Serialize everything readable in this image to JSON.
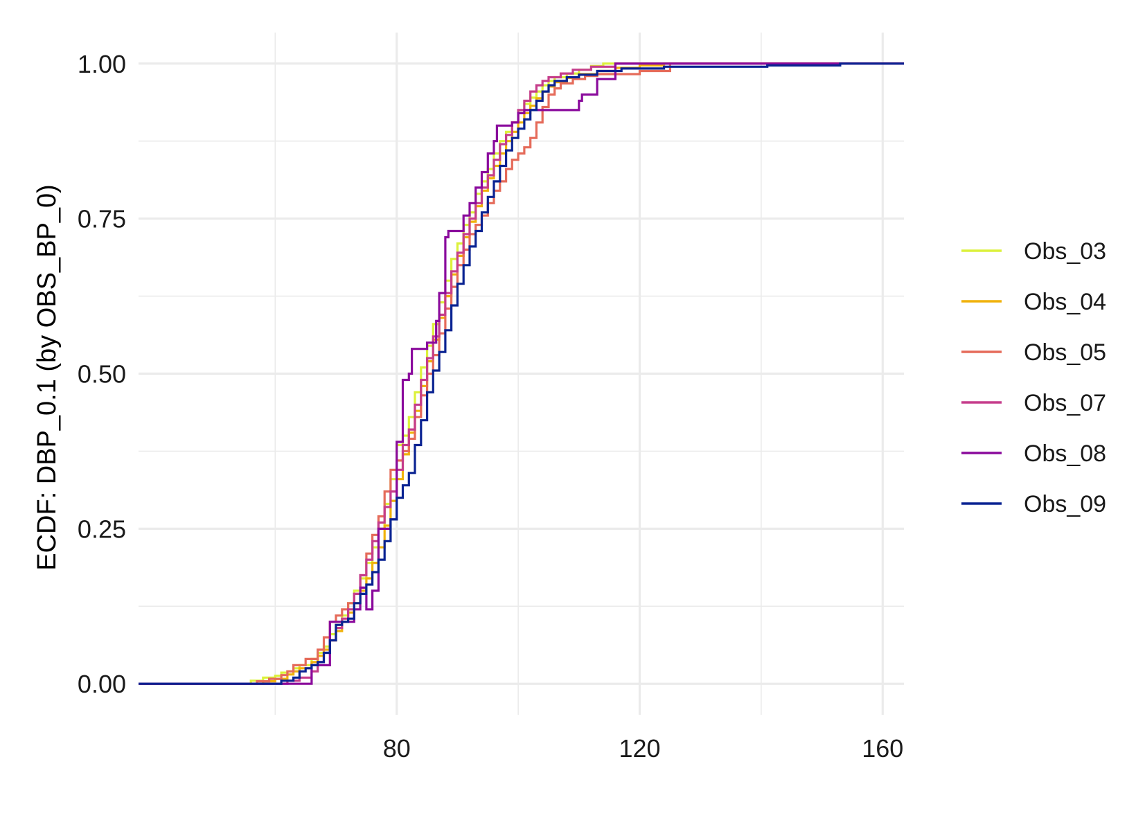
{
  "chart_data": {
    "type": "line",
    "step": true,
    "title": "",
    "xlabel": "",
    "ylabel": "ECDF: DBP_0.1 (by OBS_BP_0)",
    "xlim": [
      37.5,
      163.5
    ],
    "ylim": [
      -0.05,
      1.05
    ],
    "x_ticks": [
      80,
      120,
      160
    ],
    "x_tick_labels": [
      "80",
      "120",
      "160"
    ],
    "x_minor_ticks": [
      60,
      100,
      140
    ],
    "y_ticks": [
      0,
      0.25,
      0.5,
      0.75,
      1
    ],
    "y_tick_labels": [
      "0.00",
      "0.25",
      "0.50",
      "0.75",
      "1.00"
    ],
    "y_minor_ticks": [
      0.125,
      0.375,
      0.625,
      0.875
    ],
    "grid": true,
    "legend_position": "right",
    "series": [
      {
        "name": "Obs_03",
        "color": "#dcf13b",
        "points": [
          [
            37.5,
            0
          ],
          [
            52,
            0
          ],
          [
            56,
            0.005
          ],
          [
            58,
            0.01
          ],
          [
            60,
            0.013
          ],
          [
            61,
            0.018
          ],
          [
            62,
            0.02
          ],
          [
            63,
            0.025
          ],
          [
            64,
            0.03
          ],
          [
            66,
            0.04
          ],
          [
            67,
            0.05
          ],
          [
            68,
            0.06
          ],
          [
            69,
            0.08
          ],
          [
            70,
            0.095
          ],
          [
            71,
            0.11
          ],
          [
            72,
            0.13
          ],
          [
            73,
            0.15
          ],
          [
            74,
            0.17
          ],
          [
            75,
            0.195
          ],
          [
            76,
            0.22
          ],
          [
            77,
            0.25
          ],
          [
            78,
            0.29
          ],
          [
            79,
            0.33
          ],
          [
            80,
            0.385
          ],
          [
            81,
            0.4
          ],
          [
            82,
            0.43
          ],
          [
            83,
            0.47
          ],
          [
            84,
            0.51
          ],
          [
            85,
            0.545
          ],
          [
            86,
            0.58
          ],
          [
            87,
            0.615
          ],
          [
            88,
            0.65
          ],
          [
            89,
            0.685
          ],
          [
            90,
            0.71
          ],
          [
            91,
            0.74
          ],
          [
            92,
            0.76
          ],
          [
            93,
            0.79
          ],
          [
            94,
            0.81
          ],
          [
            95,
            0.83
          ],
          [
            96,
            0.855
          ],
          [
            97,
            0.875
          ],
          [
            98,
            0.89
          ],
          [
            99,
            0.905
          ],
          [
            100,
            0.92
          ],
          [
            101,
            0.935
          ],
          [
            102,
            0.945
          ],
          [
            103,
            0.955
          ],
          [
            104,
            0.965
          ],
          [
            105,
            0.972
          ],
          [
            106,
            0.978
          ],
          [
            108,
            0.984
          ],
          [
            110,
            0.99
          ],
          [
            112,
            0.996
          ],
          [
            114,
            1
          ],
          [
            163.5,
            1
          ]
        ]
      },
      {
        "name": "Obs_04",
        "color": "#f0b20c",
        "points": [
          [
            37.5,
            0
          ],
          [
            56,
            0
          ],
          [
            58,
            0.004
          ],
          [
            60,
            0.008
          ],
          [
            62,
            0.015
          ],
          [
            63,
            0.02
          ],
          [
            64,
            0.025
          ],
          [
            66,
            0.035
          ],
          [
            67,
            0.045
          ],
          [
            68,
            0.055
          ],
          [
            69,
            0.07
          ],
          [
            70,
            0.085
          ],
          [
            71,
            0.1
          ],
          [
            72,
            0.115
          ],
          [
            73,
            0.13
          ],
          [
            74,
            0.15
          ],
          [
            75,
            0.17
          ],
          [
            76,
            0.195
          ],
          [
            77,
            0.22
          ],
          [
            78,
            0.255
          ],
          [
            79,
            0.295
          ],
          [
            80,
            0.33
          ],
          [
            81,
            0.37
          ],
          [
            82,
            0.405
          ],
          [
            83,
            0.44
          ],
          [
            84,
            0.48
          ],
          [
            85,
            0.52
          ],
          [
            86,
            0.555
          ],
          [
            87,
            0.59
          ],
          [
            88,
            0.625
          ],
          [
            89,
            0.66
          ],
          [
            90,
            0.69
          ],
          [
            91,
            0.72
          ],
          [
            92,
            0.745
          ],
          [
            93,
            0.77
          ],
          [
            94,
            0.795
          ],
          [
            95,
            0.815
          ],
          [
            96,
            0.835
          ],
          [
            97,
            0.855
          ],
          [
            98,
            0.875
          ],
          [
            99,
            0.89
          ],
          [
            100,
            0.905
          ],
          [
            101,
            0.92
          ],
          [
            102,
            0.932
          ],
          [
            103,
            0.944
          ],
          [
            104,
            0.955
          ],
          [
            105,
            0.963
          ],
          [
            106,
            0.97
          ],
          [
            108,
            0.977
          ],
          [
            110,
            0.983
          ],
          [
            113,
            0.988
          ],
          [
            116,
            0.993
          ],
          [
            120,
            0.997
          ],
          [
            124,
            1
          ],
          [
            163.5,
            1
          ]
        ]
      },
      {
        "name": "Obs_05",
        "color": "#e56b5a",
        "points": [
          [
            37.5,
            0
          ],
          [
            55,
            0
          ],
          [
            57,
            0.004
          ],
          [
            59,
            0.008
          ],
          [
            61,
            0.014
          ],
          [
            62,
            0.02
          ],
          [
            63,
            0.03
          ],
          [
            65,
            0.04
          ],
          [
            67,
            0.055
          ],
          [
            68,
            0.075
          ],
          [
            69,
            0.1
          ],
          [
            70,
            0.11
          ],
          [
            71,
            0.12
          ],
          [
            72,
            0.13
          ],
          [
            73,
            0.145
          ],
          [
            74,
            0.175
          ],
          [
            75,
            0.21
          ],
          [
            76,
            0.24
          ],
          [
            77,
            0.27
          ],
          [
            78,
            0.31
          ],
          [
            79,
            0.345
          ],
          [
            80,
            0.36
          ],
          [
            81,
            0.375
          ],
          [
            82,
            0.395
          ],
          [
            83,
            0.43
          ],
          [
            84,
            0.465
          ],
          [
            85,
            0.5
          ],
          [
            86,
            0.53
          ],
          [
            87,
            0.565
          ],
          [
            88,
            0.605
          ],
          [
            89,
            0.64
          ],
          [
            90,
            0.675
          ],
          [
            91,
            0.7
          ],
          [
            92,
            0.725
          ],
          [
            93,
            0.74
          ],
          [
            94,
            0.755
          ],
          [
            95,
            0.775
          ],
          [
            96,
            0.795
          ],
          [
            97,
            0.81
          ],
          [
            98,
            0.83
          ],
          [
            99,
            0.845
          ],
          [
            100,
            0.855
          ],
          [
            101,
            0.865
          ],
          [
            102,
            0.88
          ],
          [
            103,
            0.905
          ],
          [
            104,
            0.93
          ],
          [
            105,
            0.95
          ],
          [
            106,
            0.96
          ],
          [
            107,
            0.968
          ],
          [
            109,
            0.975
          ],
          [
            111,
            0.98
          ],
          [
            113,
            0.983
          ],
          [
            120,
            0.988
          ],
          [
            125,
            1
          ],
          [
            163.5,
            1
          ]
        ]
      },
      {
        "name": "Obs_07",
        "color": "#c53d8b",
        "points": [
          [
            37.5,
            0
          ],
          [
            60,
            0
          ],
          [
            62,
            0.005
          ],
          [
            64,
            0.01
          ],
          [
            66,
            0.02
          ],
          [
            67,
            0.035
          ],
          [
            68,
            0.05
          ],
          [
            69,
            0.07
          ],
          [
            70,
            0.09
          ],
          [
            71,
            0.105
          ],
          [
            72,
            0.12
          ],
          [
            73,
            0.145
          ],
          [
            74,
            0.175
          ],
          [
            75,
            0.2
          ],
          [
            76,
            0.23
          ],
          [
            77,
            0.26
          ],
          [
            78,
            0.285
          ],
          [
            79,
            0.31
          ],
          [
            80,
            0.345
          ],
          [
            81,
            0.385
          ],
          [
            82,
            0.41
          ],
          [
            83,
            0.45
          ],
          [
            84,
            0.49
          ],
          [
            85,
            0.525
          ],
          [
            86,
            0.56
          ],
          [
            87,
            0.595
          ],
          [
            88,
            0.63
          ],
          [
            89,
            0.665
          ],
          [
            90,
            0.695
          ],
          [
            91,
            0.725
          ],
          [
            92,
            0.75
          ],
          [
            93,
            0.775
          ],
          [
            94,
            0.8
          ],
          [
            95,
            0.82
          ],
          [
            96,
            0.845
          ],
          [
            97,
            0.87
          ],
          [
            98,
            0.885
          ],
          [
            99,
            0.905
          ],
          [
            100,
            0.925
          ],
          [
            101,
            0.94
          ],
          [
            102,
            0.955
          ],
          [
            103,
            0.965
          ],
          [
            104,
            0.972
          ],
          [
            105,
            0.978
          ],
          [
            107,
            0.984
          ],
          [
            109,
            0.99
          ],
          [
            112,
            0.995
          ],
          [
            116,
            1
          ],
          [
            163.5,
            1
          ]
        ]
      },
      {
        "name": "Obs_08",
        "color": "#8a0a9c",
        "points": [
          [
            37.5,
            0
          ],
          [
            65,
            0
          ],
          [
            66,
            0.03
          ],
          [
            69,
            0.1
          ],
          [
            72,
            0.1
          ],
          [
            73,
            0.12
          ],
          [
            74,
            0.155
          ],
          [
            75,
            0.12
          ],
          [
            76,
            0.15
          ],
          [
            77,
            0.25
          ],
          [
            78,
            0.25
          ],
          [
            79,
            0.265
          ],
          [
            80,
            0.39
          ],
          [
            81,
            0.49
          ],
          [
            82,
            0.5
          ],
          [
            82.5,
            0.54
          ],
          [
            84,
            0.54
          ],
          [
            85,
            0.55
          ],
          [
            86,
            0.55
          ],
          [
            86.5,
            0.585
          ],
          [
            87,
            0.63
          ],
          [
            88,
            0.72
          ],
          [
            88.5,
            0.73
          ],
          [
            90,
            0.73
          ],
          [
            91,
            0.755
          ],
          [
            92,
            0.775
          ],
          [
            93,
            0.8
          ],
          [
            94,
            0.825
          ],
          [
            95,
            0.855
          ],
          [
            96,
            0.875
          ],
          [
            96.5,
            0.9
          ],
          [
            98,
            0.9
          ],
          [
            99,
            0.905
          ],
          [
            100,
            0.92
          ],
          [
            101,
            0.925
          ],
          [
            102,
            0.925
          ],
          [
            104,
            0.925
          ],
          [
            106,
            0.925
          ],
          [
            106,
            0.925
          ],
          [
            110,
            0.94
          ],
          [
            110.5,
            0.95
          ],
          [
            113,
            0.975
          ],
          [
            116,
            1
          ],
          [
            163.5,
            1
          ]
        ]
      },
      {
        "name": "Obs_09",
        "color": "#0a2392",
        "points": [
          [
            37.5,
            0
          ],
          [
            57,
            0
          ],
          [
            61,
            0.005
          ],
          [
            63,
            0.01
          ],
          [
            64,
            0.02
          ],
          [
            65,
            0.025
          ],
          [
            66,
            0.03
          ],
          [
            67,
            0.035
          ],
          [
            68,
            0.05
          ],
          [
            69,
            0.07
          ],
          [
            70,
            0.095
          ],
          [
            71,
            0.1
          ],
          [
            72,
            0.105
          ],
          [
            73,
            0.13
          ],
          [
            74,
            0.145
          ],
          [
            75,
            0.16
          ],
          [
            76,
            0.18
          ],
          [
            77,
            0.2
          ],
          [
            78,
            0.23
          ],
          [
            79,
            0.265
          ],
          [
            80,
            0.3
          ],
          [
            81,
            0.32
          ],
          [
            82,
            0.34
          ],
          [
            83,
            0.385
          ],
          [
            84,
            0.425
          ],
          [
            85,
            0.47
          ],
          [
            86,
            0.505
          ],
          [
            87,
            0.535
          ],
          [
            88,
            0.57
          ],
          [
            89,
            0.61
          ],
          [
            90,
            0.645
          ],
          [
            91,
            0.675
          ],
          [
            92,
            0.705
          ],
          [
            93,
            0.73
          ],
          [
            94,
            0.76
          ],
          [
            95,
            0.785
          ],
          [
            96,
            0.81
          ],
          [
            97,
            0.835
          ],
          [
            98,
            0.86
          ],
          [
            99,
            0.88
          ],
          [
            100,
            0.895
          ],
          [
            101,
            0.91
          ],
          [
            102,
            0.925
          ],
          [
            103,
            0.94
          ],
          [
            104,
            0.955
          ],
          [
            105,
            0.965
          ],
          [
            106,
            0.972
          ],
          [
            108,
            0.978
          ],
          [
            110,
            0.982
          ],
          [
            113,
            0.988
          ],
          [
            117,
            0.992
          ],
          [
            124,
            0.995
          ],
          [
            141,
            0.997
          ],
          [
            153,
            1
          ],
          [
            163.5,
            1
          ]
        ]
      }
    ]
  }
}
